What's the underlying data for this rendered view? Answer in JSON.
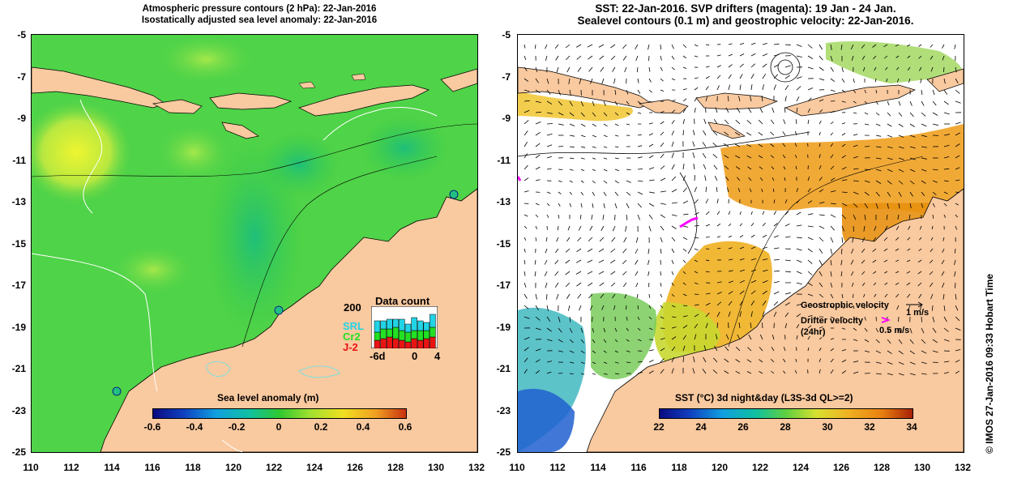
{
  "left_panel": {
    "title_line1": "Atmospheric pressure contours (2 hPa): 22-Jan-2016",
    "title_line2": "Isostatically adjusted sea level anomaly: 22-Jan-2016",
    "colorbar_title": "Sea level anomaly (m)",
    "colorbar_ticks": [
      "-0.6",
      "-0.4",
      "-0.2",
      "0",
      "0.2",
      "0.4",
      "0.6"
    ],
    "data_count": {
      "title": "Data count",
      "y_max_label": "200",
      "x_labels": [
        "-6d",
        "0",
        "4"
      ],
      "series": [
        "SRL",
        "Cr2",
        "J-2"
      ],
      "series_colors": [
        "#22d3e6",
        "#22e022",
        "#e81414"
      ]
    }
  },
  "right_panel": {
    "title_line1": "SST: 22-Jan-2016. SVP drifters (magenta): 19 Jan - 24 Jan.",
    "title_line2": "Sealevel contours (0.1 m) and geostrophic velocity: 22-Jan-2016.",
    "colorbar_title": "SST (°C) 3d night&day (L3S-3d QL>=2)",
    "colorbar_ticks": [
      "22",
      "24",
      "26",
      "28",
      "30",
      "32",
      "34"
    ],
    "legend": {
      "geo_label": "Geostrophic velocity",
      "geo_value": "1 m/s",
      "drifter_label": "Drifter velocity",
      "drifter_sub": "(24hr)",
      "drifter_value": "0.5 m/s"
    }
  },
  "y_ticks": [
    "-5",
    "-7",
    "-9",
    "-11",
    "-13",
    "-15",
    "-17",
    "-19",
    "-21",
    "-23",
    "-25"
  ],
  "x_ticks": [
    "110",
    "112",
    "114",
    "116",
    "118",
    "120",
    "122",
    "124",
    "126",
    "128",
    "130",
    "132"
  ],
  "credit": "© IMOS 27-Jan-2016 09:33 Hobart Time",
  "colors": {
    "land": "#f9c99f",
    "ocean_green": "#33cc33",
    "ocean_light": "#7ee05a",
    "anomaly_yellow": "#e8f030",
    "sst_orange": "#f0a020",
    "drifter": "#ff00ff"
  }
}
